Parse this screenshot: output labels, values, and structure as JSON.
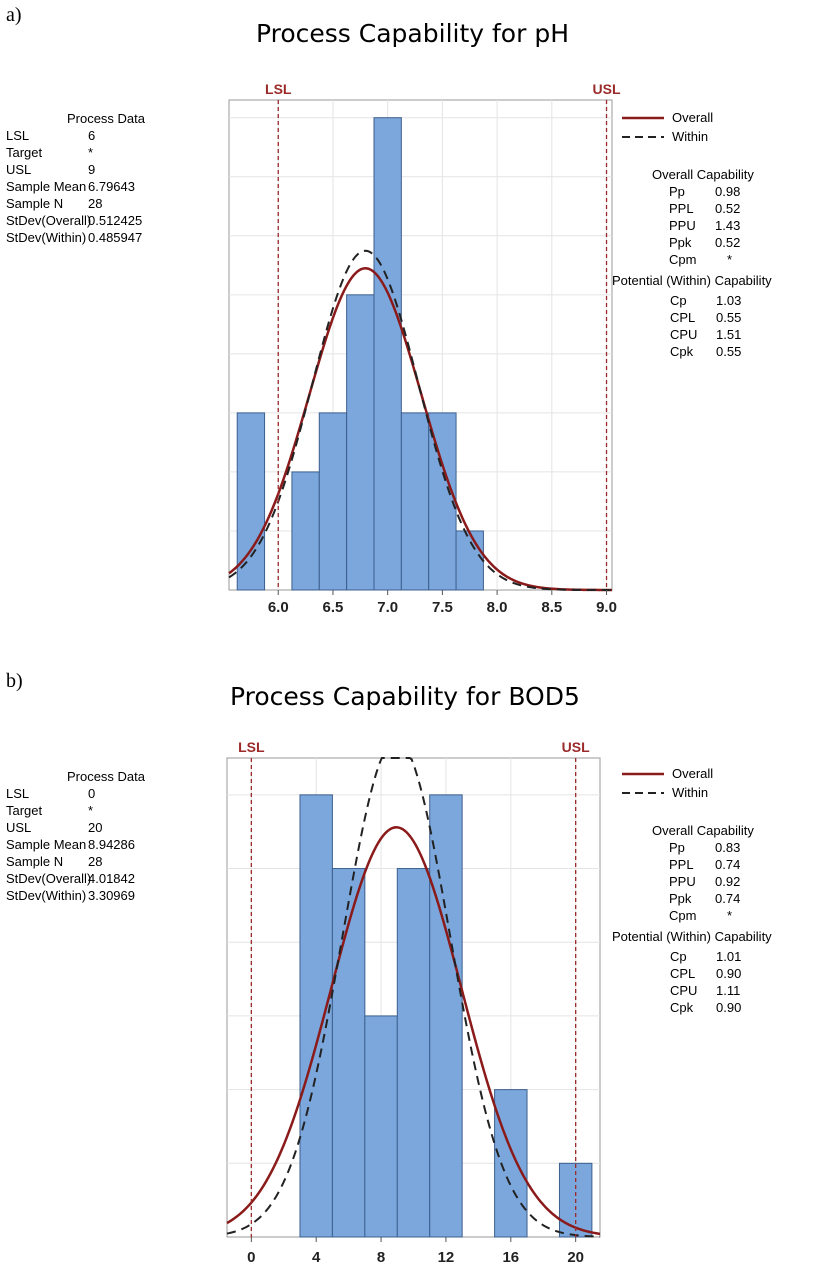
{
  "panels": [
    {
      "letter": "a)",
      "title": "Process Capability for pH",
      "process_data": {
        "header": "Process Data",
        "rows": [
          {
            "label": "LSL",
            "value": "6"
          },
          {
            "label": "Target",
            "value": "*"
          },
          {
            "label": "USL",
            "value": "9"
          },
          {
            "label": "Sample Mean",
            "value": "6.79643"
          },
          {
            "label": "Sample N",
            "value": "28"
          },
          {
            "label": "StDev(Overall)",
            "value": "0.512425"
          },
          {
            "label": "StDev(Within)",
            "value": "0.485947"
          }
        ]
      },
      "legend": {
        "overall": "Overall",
        "within": "Within"
      },
      "overall_capability": {
        "header": "Overall Capability",
        "rows": [
          {
            "label": "Pp",
            "value": "0.98"
          },
          {
            "label": "PPL",
            "value": "0.52"
          },
          {
            "label": "PPU",
            "value": "1.43"
          },
          {
            "label": "Ppk",
            "value": "0.52"
          },
          {
            "label": "Cpm",
            "value": "*"
          }
        ]
      },
      "within_capability": {
        "header": "Potential (Within) Capability",
        "rows": [
          {
            "label": "Cp",
            "value": "1.03"
          },
          {
            "label": "CPL",
            "value": "0.55"
          },
          {
            "label": "CPU",
            "value": "1.51"
          },
          {
            "label": "Cpk",
            "value": "0.55"
          }
        ]
      }
    },
    {
      "letter": "b)",
      "title": "Process Capability for BOD5",
      "process_data": {
        "header": "Process Data",
        "rows": [
          {
            "label": "LSL",
            "value": "0"
          },
          {
            "label": "Target",
            "value": "*"
          },
          {
            "label": "USL",
            "value": "20"
          },
          {
            "label": "Sample Mean",
            "value": "8.94286"
          },
          {
            "label": "Sample N",
            "value": "28"
          },
          {
            "label": "StDev(Overall)",
            "value": "4.01842"
          },
          {
            "label": "StDev(Within)",
            "value": "3.30969"
          }
        ]
      },
      "legend": {
        "overall": "Overall",
        "within": "Within"
      },
      "overall_capability": {
        "header": "Overall Capability",
        "rows": [
          {
            "label": "Pp",
            "value": "0.83"
          },
          {
            "label": "PPL",
            "value": "0.74"
          },
          {
            "label": "PPU",
            "value": "0.92"
          },
          {
            "label": "Ppk",
            "value": "0.74"
          },
          {
            "label": "Cpm",
            "value": "*"
          }
        ]
      },
      "within_capability": {
        "header": "Potential (Within) Capability",
        "rows": [
          {
            "label": "Cp",
            "value": "1.01"
          },
          {
            "label": "CPL",
            "value": "0.90"
          },
          {
            "label": "CPU",
            "value": "1.11"
          },
          {
            "label": "Cpk",
            "value": "0.90"
          }
        ]
      }
    }
  ],
  "colors": {
    "bar_fill": "#7ba7dc",
    "bar_stroke": "#3d5f8e",
    "overall_curve": "#8b1a1a",
    "within_curve": "#222222",
    "spec_line": "#9b2a2a",
    "spec_label": "#9b2a2a",
    "grid": "#e4e4e4"
  },
  "chart_data": [
    {
      "type": "bar",
      "subtype": "histogram-with-normal-fits",
      "title": "Process Capability for pH",
      "xlim": [
        5.55,
        9.05
      ],
      "bin_width": 0.25,
      "bins": [
        {
          "x0": 5.625,
          "count": 3
        },
        {
          "x0": 6.125,
          "count": 2
        },
        {
          "x0": 6.375,
          "count": 3
        },
        {
          "x0": 6.625,
          "count": 5
        },
        {
          "x0": 6.875,
          "count": 8
        },
        {
          "x0": 7.125,
          "count": 3
        },
        {
          "x0": 7.375,
          "count": 3
        },
        {
          "x0": 7.625,
          "count": 1
        }
      ],
      "x_ticks": [
        "6.0",
        "6.5",
        "7.0",
        "7.5",
        "8.0",
        "8.5",
        "9.0"
      ],
      "x_tick_values": [
        6.0,
        6.5,
        7.0,
        7.5,
        8.0,
        8.5,
        9.0
      ],
      "spec_limits": [
        {
          "label": "LSL",
          "value": 6
        },
        {
          "label": "USL",
          "value": 9
        }
      ],
      "series": [
        {
          "name": "Overall",
          "kind": "normal-curve",
          "mean": 6.79643,
          "sd": 0.512425
        },
        {
          "name": "Within",
          "kind": "normal-curve",
          "mean": 6.79643,
          "sd": 0.485947
        }
      ],
      "sample_n": 28,
      "grid": true
    },
    {
      "type": "bar",
      "subtype": "histogram-with-normal-fits",
      "title": "Process Capability for BOD5",
      "xlim": [
        -1.5,
        21.5
      ],
      "bin_width": 2,
      "bins": [
        {
          "x0": 3,
          "count": 6
        },
        {
          "x0": 5,
          "count": 5
        },
        {
          "x0": 7,
          "count": 3
        },
        {
          "x0": 9,
          "count": 5
        },
        {
          "x0": 11,
          "count": 6
        },
        {
          "x0": 15,
          "count": 2
        },
        {
          "x0": 19,
          "count": 1
        }
      ],
      "x_ticks": [
        "0",
        "4",
        "8",
        "12",
        "16",
        "20"
      ],
      "x_tick_values": [
        0,
        4,
        8,
        12,
        16,
        20
      ],
      "spec_limits": [
        {
          "label": "LSL",
          "value": 0
        },
        {
          "label": "USL",
          "value": 20
        }
      ],
      "series": [
        {
          "name": "Overall",
          "kind": "normal-curve",
          "mean": 8.94286,
          "sd": 4.01842
        },
        {
          "name": "Within",
          "kind": "normal-curve",
          "mean": 8.94286,
          "sd": 3.30969
        }
      ],
      "sample_n": 28,
      "grid": true
    }
  ]
}
